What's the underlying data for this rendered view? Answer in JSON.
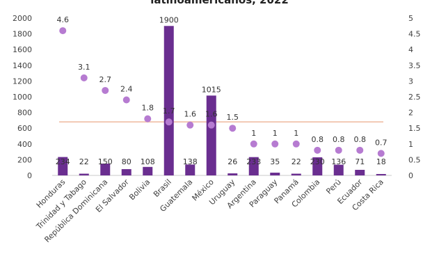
{
  "chart_data": {
    "type": "bar",
    "title": "latinoamericanos, 2022",
    "categories": [
      "Honduras",
      "Trinidad y Tabago",
      "República Dominicana",
      "El Salvador",
      "Bolivia",
      "Brasil",
      "Guatemala",
      "México",
      "Uruguay",
      "Argentina",
      "Paraguay",
      "Panamá",
      "Colombia",
      "Perú",
      "Ecuador",
      "Costa Rica"
    ],
    "series": [
      {
        "type": "bar",
        "axis": "left",
        "values": [
          234,
          22,
          150,
          80,
          108,
          1900,
          138,
          1015,
          26,
          233,
          35,
          22,
          230,
          136,
          71,
          18
        ],
        "data_labels": [
          "234",
          "22",
          "150",
          "80",
          "108",
          "1900",
          "138",
          "1015",
          "26",
          "233",
          "35",
          "22",
          "230",
          "136",
          "71",
          "18"
        ]
      },
      {
        "type": "scatter",
        "axis": "right",
        "values": [
          4.6,
          3.1,
          2.7,
          2.4,
          1.8,
          1.7,
          1.6,
          1.6,
          1.5,
          1,
          1,
          1,
          0.8,
          0.8,
          0.8,
          0.7
        ],
        "data_labels": [
          "4.6",
          "3.1",
          "2.7",
          "2.4",
          "1.8",
          "1.7",
          "1.6",
          "1.6",
          "1.5",
          "1",
          "1",
          "1",
          "0.8",
          "0.8",
          "0.8",
          "0.7"
        ]
      }
    ],
    "reference_line": {
      "axis": "right",
      "value": 1.7
    },
    "y_left": {
      "range": [
        0,
        2000
      ],
      "ticks": [
        "0",
        "200",
        "400",
        "600",
        "800",
        "1000",
        "1200",
        "1400",
        "1600",
        "1800",
        "2000"
      ]
    },
    "y_right": {
      "range": [
        0,
        5
      ],
      "ticks": [
        "0",
        "0.5",
        "1",
        "1.5",
        "2",
        "2.5",
        "3",
        "3.5",
        "4",
        "4.5",
        "5"
      ]
    },
    "grid": false,
    "legend": "none",
    "colors": {
      "bar": "#6a2e90",
      "dot": "#b67bd1",
      "reference_line": "#f2c9b3",
      "axis": "#c8c8c8",
      "text": "#404040"
    }
  }
}
